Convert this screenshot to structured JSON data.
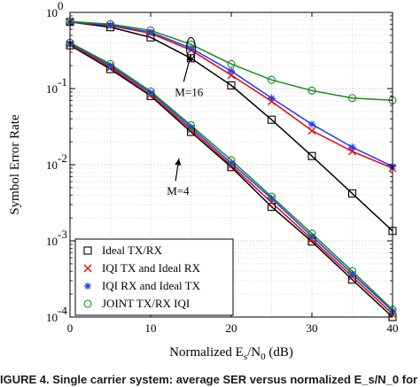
{
  "chart_data": {
    "type": "line",
    "xlabel_main": "Normalized E",
    "xlabel_sub1": "s",
    "xlabel_mid": "/N",
    "xlabel_sub2": "0",
    "xlabel_tail": " (dB)",
    "ylabel": "Symbol Error Rate",
    "xlim": [
      0,
      40
    ],
    "ylim": [
      0.0001,
      1
    ],
    "yscale": "log",
    "grid": true,
    "x_ticks": [
      0,
      10,
      20,
      30,
      40
    ],
    "y_ticks": [
      {
        "value": 1,
        "base": "10",
        "exp": "0"
      },
      {
        "value": 0.1,
        "base": "10",
        "exp": "-1"
      },
      {
        "value": 0.01,
        "base": "10",
        "exp": "-2"
      },
      {
        "value": 0.001,
        "base": "10",
        "exp": "-3"
      },
      {
        "value": 0.0001,
        "base": "10",
        "exp": "-4"
      }
    ],
    "legend_position": "bottom-left",
    "series": [
      {
        "name": "Ideal TX/RX",
        "color": "#000000",
        "marker": "square",
        "group": "M=16",
        "x": [
          0,
          5,
          10,
          15,
          20,
          25,
          30,
          35,
          40
        ],
        "values": [
          0.75,
          0.64,
          0.47,
          0.25,
          0.11,
          0.039,
          0.013,
          0.0042,
          0.00135
        ]
      },
      {
        "name": "IQI TX and Ideal RX",
        "color": "#e8000b",
        "marker": "x",
        "group": "M=16",
        "x": [
          0,
          5,
          10,
          15,
          20,
          25,
          30,
          35,
          40
        ],
        "values": [
          0.75,
          0.67,
          0.53,
          0.32,
          0.15,
          0.068,
          0.028,
          0.015,
          0.009
        ]
      },
      {
        "name": "IQI RX and Ideal TX",
        "color": "#1f3cff",
        "marker": "star",
        "group": "M=16",
        "x": [
          0,
          5,
          10,
          15,
          20,
          25,
          30,
          35,
          40
        ],
        "values": [
          0.75,
          0.68,
          0.55,
          0.34,
          0.17,
          0.075,
          0.034,
          0.017,
          0.0095
        ]
      },
      {
        "name": "JOINT TX/RX IQI",
        "color": "#1a8a1a",
        "marker": "circle",
        "group": "M=16",
        "x": [
          0,
          5,
          10,
          15,
          20,
          25,
          30,
          35,
          40
        ],
        "values": [
          0.76,
          0.7,
          0.58,
          0.38,
          0.21,
          0.13,
          0.094,
          0.075,
          0.07
        ]
      },
      {
        "name": "",
        "color": "#000000",
        "marker": "square",
        "group": "M=4",
        "x": [
          0,
          5,
          10,
          15,
          20,
          25,
          30,
          35,
          40
        ],
        "values": [
          0.37,
          0.18,
          0.08,
          0.027,
          0.0093,
          0.0028,
          0.00098,
          0.00031,
          0.0001
        ]
      },
      {
        "name": "",
        "color": "#e8000b",
        "marker": "x",
        "group": "M=4",
        "x": [
          0,
          5,
          10,
          15,
          20,
          25,
          30,
          35,
          40
        ],
        "values": [
          0.38,
          0.19,
          0.083,
          0.029,
          0.0098,
          0.0032,
          0.00105,
          0.00034,
          0.00011
        ]
      },
      {
        "name": "",
        "color": "#1f3cff",
        "marker": "star",
        "group": "M=4",
        "x": [
          0,
          5,
          10,
          15,
          20,
          25,
          30,
          35,
          40
        ],
        "values": [
          0.39,
          0.2,
          0.088,
          0.031,
          0.0105,
          0.0036,
          0.00115,
          0.00037,
          0.00012
        ]
      },
      {
        "name": "",
        "color": "#1a8a1a",
        "marker": "circle",
        "group": "M=4",
        "x": [
          0,
          5,
          10,
          15,
          20,
          25,
          30,
          35,
          40
        ],
        "values": [
          0.4,
          0.21,
          0.092,
          0.033,
          0.0115,
          0.0038,
          0.00125,
          0.0004,
          0.000125
        ]
      }
    ],
    "annotations": [
      {
        "text": "M=16",
        "arrow_to": [
          15,
          0.28
        ],
        "label_at": [
          13,
          0.08
        ]
      },
      {
        "text": "M=4",
        "arrow_to": [
          13.5,
          0.012
        ],
        "label_at": [
          12,
          0.004
        ]
      }
    ]
  },
  "caption": "IGURE 4.  Single carrier system: average SER versus normalized E_s/N_0 for"
}
